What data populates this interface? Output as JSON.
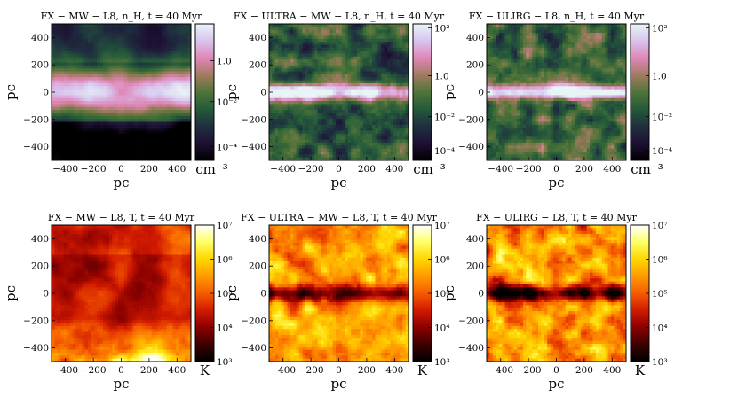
{
  "colors": {
    "density_cmap": [
      "#000000",
      "#1e1034",
      "#1f2f3f",
      "#245a3a",
      "#4f7438",
      "#a27b60",
      "#e086b8",
      "#d8c4ee",
      "#e8f4f6"
    ],
    "temperature_cmap": [
      "#000000",
      "#3c0000",
      "#8a0000",
      "#d01a00",
      "#f55b00",
      "#ff9a00",
      "#ffd600",
      "#ffff66",
      "#ffffff"
    ]
  },
  "chart_data": [
    {
      "type": "heatmap",
      "quantity": "density",
      "colormap": "density",
      "title": "FX − MW − L8, n_H, t = 40 Myr",
      "xlabel": "pc",
      "ylabel": "pc",
      "xlim": [
        -500,
        500
      ],
      "ylim": [
        -500,
        500
      ],
      "x_ticks": [
        "−400",
        "−200",
        "0",
        "200",
        "400"
      ],
      "y_ticks": [
        "400",
        "200",
        "0",
        "−200",
        "−400"
      ],
      "colorbar": {
        "unit": "cm⁻³",
        "ticks": [
          "1.0",
          "10⁻²",
          "10⁻⁴"
        ]
      }
    },
    {
      "type": "heatmap",
      "quantity": "density",
      "colormap": "density",
      "title": "FX − ULTRA − MW − L8, n_H, t = 40 Myr",
      "xlabel": "pc",
      "ylabel": "pc",
      "xlim": [
        -500,
        500
      ],
      "ylim": [
        -500,
        500
      ],
      "x_ticks": [
        "−400",
        "−200",
        "0",
        "200",
        "400"
      ],
      "y_ticks": [
        "400",
        "200",
        "0",
        "−200",
        "−400"
      ],
      "colorbar": {
        "unit": "cm⁻³",
        "ticks": [
          "10²",
          "1.0",
          "10⁻²",
          "10⁻⁴"
        ]
      }
    },
    {
      "type": "heatmap",
      "quantity": "density",
      "colormap": "density",
      "title": "FX − ULIRG − L8, n_H, t = 40 Myr",
      "xlabel": "pc",
      "ylabel": "pc",
      "xlim": [
        -500,
        500
      ],
      "ylim": [
        -500,
        500
      ],
      "x_ticks": [
        "−400",
        "−200",
        "0",
        "200",
        "400"
      ],
      "y_ticks": [
        "400",
        "200",
        "0",
        "−200",
        "−400"
      ],
      "colorbar": {
        "unit": "cm⁻³",
        "ticks": [
          "10²",
          "1.0",
          "10⁻²",
          "10⁻⁴"
        ]
      }
    },
    {
      "type": "heatmap",
      "quantity": "temperature",
      "colormap": "temperature",
      "title": "FX − MW − L8, T, t = 40 Myr",
      "xlabel": "pc",
      "ylabel": "pc",
      "xlim": [
        -500,
        500
      ],
      "ylim": [
        -500,
        500
      ],
      "x_ticks": [
        "−400",
        "−200",
        "0",
        "200",
        "400"
      ],
      "y_ticks": [
        "400",
        "200",
        "0",
        "−200",
        "−400"
      ],
      "colorbar": {
        "unit": "K",
        "ticks": [
          "10⁷",
          "10⁶",
          "10⁵",
          "10⁴",
          "10³"
        ]
      }
    },
    {
      "type": "heatmap",
      "quantity": "temperature",
      "colormap": "temperature",
      "title": "FX − ULTRA − MW − L8, T, t = 40 Myr",
      "xlabel": "pc",
      "ylabel": "pc",
      "xlim": [
        -500,
        500
      ],
      "ylim": [
        -500,
        500
      ],
      "x_ticks": [
        "−400",
        "−200",
        "0",
        "200",
        "400"
      ],
      "y_ticks": [
        "400",
        "200",
        "0",
        "−200",
        "−400"
      ],
      "colorbar": {
        "unit": "K",
        "ticks": [
          "10⁷",
          "10⁶",
          "10⁵",
          "10⁴",
          "10³"
        ]
      }
    },
    {
      "type": "heatmap",
      "quantity": "temperature",
      "colormap": "temperature",
      "title": "FX − ULIRG − L8, T, t = 40 Myr",
      "xlabel": "pc",
      "ylabel": "pc",
      "xlim": [
        -500,
        500
      ],
      "ylim": [
        -500,
        500
      ],
      "x_ticks": [
        "−400",
        "−200",
        "0",
        "200",
        "400"
      ],
      "y_ticks": [
        "400",
        "200",
        "0",
        "−200",
        "−400"
      ],
      "colorbar": {
        "unit": "K",
        "ticks": [
          "10⁷",
          "10⁶",
          "10⁵",
          "10⁴",
          "10³"
        ]
      }
    }
  ]
}
